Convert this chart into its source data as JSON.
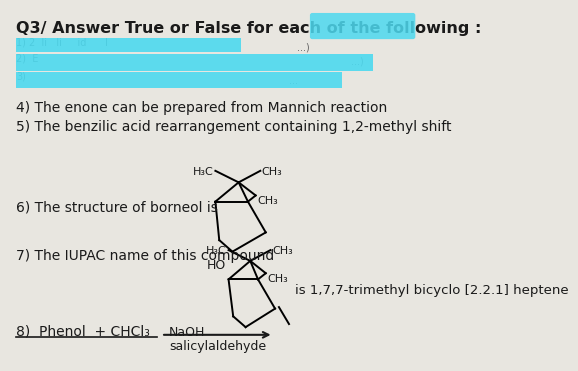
{
  "background_color": "#d8d8d8",
  "paper_color": "#e8e6e0",
  "title_text": "Q3/ Answer True or False for each of the following :",
  "highlight_color": "#4dd9ef",
  "line4": "4) The enone can be prepared from Mannich reaction",
  "line5": "5) The benzilic acid rearrangement containing 1,2-methyl shift",
  "line6_text": "6) The structure of borneol is",
  "line7_text": "7) The IUPAC name of this compound",
  "line7_right": "is 1,7,7-trimethyl bicyclo [2.2.1] heptene",
  "line8_left": "8)  Phenol  + CHCl₃",
  "line8_mid": "NaOH",
  "line8_right": "salicylaldehyde",
  "text_color": "#1a1a1a",
  "font_size_title": 11.5,
  "font_size_body": 10.0,
  "font_size_chem": 8.0
}
